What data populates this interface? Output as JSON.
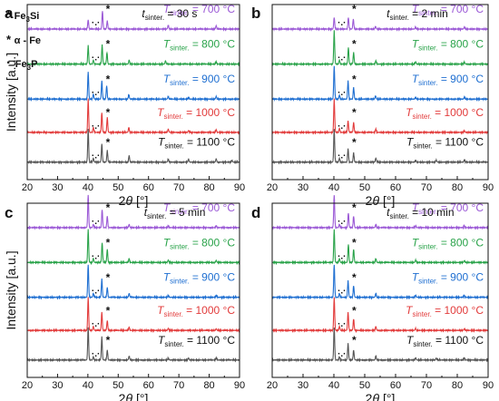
{
  "chart_data": [
    {
      "panel": "a",
      "type": "line",
      "time_label": "30 s",
      "xlabel": "2θ [°]",
      "ylabel": "Intensity [a.u.]",
      "xlim": [
        20,
        90
      ],
      "xticks": [
        "20",
        "30",
        "40",
        "50",
        "60",
        "70",
        "80",
        "90"
      ],
      "legend": [
        {
          "symbol": "*",
          "label": "Fe3Si",
          "sub": "3",
          "base": "Fe",
          "tail": "Si"
        },
        {
          "symbol": "*",
          "label": "α - Fe"
        },
        {
          "symbol": "·",
          "label": "Fe3P",
          "sub": "3",
          "base": "Fe",
          "tail": "P"
        }
      ],
      "series": [
        {
          "name": "700 °C",
          "color": "#9b59d6",
          "peaks": [
            [
              40.1,
              0.28
            ],
            [
              44.8,
              0.55
            ],
            [
              46.4,
              0.25
            ],
            [
              66.5,
              0.12
            ],
            [
              82.3,
              0.1
            ]
          ]
        },
        {
          "name": "800 °C",
          "color": "#2aa34a",
          "peaks": [
            [
              40.1,
              0.55
            ],
            [
              41.8,
              0.12
            ],
            [
              44.7,
              0.58
            ],
            [
              46.3,
              0.35
            ],
            [
              53.6,
              0.12
            ],
            [
              65.6,
              0.1
            ],
            [
              82.3,
              0.07
            ]
          ]
        },
        {
          "name": "900 °C",
          "color": "#1f6fd1",
          "peaks": [
            [
              40.1,
              0.82
            ],
            [
              41.8,
              0.15
            ],
            [
              44.6,
              0.55
            ],
            [
              46.2,
              0.4
            ],
            [
              53.5,
              0.14
            ],
            [
              66.5,
              0.08
            ],
            [
              73.2,
              0.05
            ],
            [
              82.3,
              0.08
            ]
          ]
        },
        {
          "name": "1000 °C",
          "color": "#e23b3b",
          "peaks": [
            [
              40.1,
              1.0
            ],
            [
              41.8,
              0.15
            ],
            [
              44.6,
              0.6
            ],
            [
              46.4,
              0.45
            ],
            [
              53.5,
              0.15
            ],
            [
              66.5,
              0.1
            ],
            [
              73.2,
              0.06
            ],
            [
              82.3,
              0.08
            ]
          ]
        },
        {
          "name": "1100 °C",
          "color": "#555555",
          "peaks": [
            [
              40.1,
              1.0
            ],
            [
              41.8,
              0.12
            ],
            [
              44.6,
              0.55
            ],
            [
              46.4,
              0.35
            ],
            [
              53.6,
              0.2
            ],
            [
              66.5,
              0.09
            ],
            [
              73.2,
              0.09
            ],
            [
              82.3,
              0.1
            ],
            [
              87.5,
              0.05
            ]
          ]
        }
      ]
    },
    {
      "panel": "b",
      "type": "line",
      "time_label": "2 min",
      "xlabel": "2θ [°]",
      "ylabel": "",
      "xlim": [
        20,
        90
      ],
      "xticks": [
        "20",
        "30",
        "40",
        "50",
        "60",
        "70",
        "80",
        "90"
      ],
      "series": [
        {
          "name": "700 °C",
          "color": "#9b59d6",
          "peaks": [
            [
              40.1,
              0.35
            ],
            [
              44.7,
              0.35
            ],
            [
              46.3,
              0.3
            ],
            [
              53.5,
              0.08
            ],
            [
              66.5,
              0.06
            ],
            [
              82.3,
              0.06
            ]
          ]
        },
        {
          "name": "800 °C",
          "color": "#2aa34a",
          "peaks": [
            [
              40.1,
              1.0
            ],
            [
              41.8,
              0.12
            ],
            [
              44.7,
              0.5
            ],
            [
              46.4,
              0.35
            ],
            [
              53.6,
              0.1
            ],
            [
              66.5,
              0.07
            ],
            [
              82.3,
              0.06
            ]
          ]
        },
        {
          "name": "900 °C",
          "color": "#1f6fd1",
          "peaks": [
            [
              40.1,
              1.0
            ],
            [
              41.8,
              0.12
            ],
            [
              44.6,
              0.55
            ],
            [
              46.4,
              0.35
            ],
            [
              53.5,
              0.1
            ],
            [
              66.5,
              0.06
            ],
            [
              82.3,
              0.06
            ]
          ]
        },
        {
          "name": "1000 °C",
          "color": "#e23b3b",
          "peaks": [
            [
              40.1,
              1.0
            ],
            [
              41.8,
              0.12
            ],
            [
              44.6,
              0.35
            ],
            [
              46.4,
              0.3
            ],
            [
              53.6,
              0.1
            ],
            [
              82.3,
              0.05
            ]
          ]
        },
        {
          "name": "1100 °C",
          "color": "#555555",
          "peaks": [
            [
              40.1,
              1.0
            ],
            [
              41.8,
              0.12
            ],
            [
              44.6,
              0.4
            ],
            [
              46.4,
              0.28
            ],
            [
              53.6,
              0.12
            ],
            [
              66.5,
              0.06
            ],
            [
              73.2,
              0.06
            ],
            [
              82.3,
              0.07
            ]
          ]
        }
      ]
    },
    {
      "panel": "c",
      "type": "line",
      "time_label": "5 min",
      "xlabel": "2θ [°]",
      "ylabel": "Intensity [a.u.]",
      "xlim": [
        20,
        90
      ],
      "xticks": [
        "20",
        "30",
        "40",
        "50",
        "60",
        "70",
        "80",
        "90"
      ],
      "series": [
        {
          "name": "700 °C",
          "color": "#9b59d6",
          "peaks": [
            [
              40.1,
              1.0
            ],
            [
              41.8,
              0.1
            ],
            [
              44.7,
              0.55
            ],
            [
              46.4,
              0.35
            ],
            [
              53.6,
              0.1
            ],
            [
              66.5,
              0.06
            ],
            [
              82.3,
              0.06
            ]
          ]
        },
        {
          "name": "800 °C",
          "color": "#2aa34a",
          "peaks": [
            [
              40.1,
              1.0
            ],
            [
              41.8,
              0.12
            ],
            [
              44.7,
              0.6
            ],
            [
              46.4,
              0.4
            ],
            [
              53.6,
              0.12
            ],
            [
              66.5,
              0.07
            ],
            [
              82.3,
              0.06
            ]
          ]
        },
        {
          "name": "900 °C",
          "color": "#1f6fd1",
          "peaks": [
            [
              40.1,
              1.0
            ],
            [
              41.8,
              0.12
            ],
            [
              44.6,
              0.55
            ],
            [
              46.4,
              0.3
            ],
            [
              53.6,
              0.12
            ],
            [
              66.5,
              0.06
            ],
            [
              82.3,
              0.06
            ]
          ]
        },
        {
          "name": "1000 °C",
          "color": "#e23b3b",
          "peaks": [
            [
              40.1,
              1.0
            ],
            [
              41.8,
              0.12
            ],
            [
              44.6,
              0.55
            ],
            [
              46.4,
              0.3
            ],
            [
              53.6,
              0.1
            ],
            [
              66.5,
              0.06
            ],
            [
              82.3,
              0.05
            ]
          ]
        },
        {
          "name": "1100 °C",
          "color": "#555555",
          "peaks": [
            [
              40.1,
              1.0
            ],
            [
              41.8,
              0.1
            ],
            [
              44.6,
              0.7
            ],
            [
              46.4,
              0.3
            ],
            [
              53.6,
              0.12
            ],
            [
              66.5,
              0.06
            ],
            [
              73.2,
              0.06
            ],
            [
              82.3,
              0.07
            ]
          ]
        }
      ]
    },
    {
      "panel": "d",
      "type": "line",
      "time_label": "10 min",
      "xlabel": "2θ [°]",
      "ylabel": "",
      "xlim": [
        20,
        90
      ],
      "xticks": [
        "20",
        "30",
        "40",
        "50",
        "60",
        "70",
        "80",
        "90"
      ],
      "series": [
        {
          "name": "700 °C",
          "color": "#9b59d6",
          "peaks": [
            [
              40.1,
              1.0
            ],
            [
              41.8,
              0.1
            ],
            [
              44.7,
              0.45
            ],
            [
              46.4,
              0.35
            ],
            [
              53.6,
              0.1
            ],
            [
              66.5,
              0.06
            ],
            [
              82.3,
              0.06
            ]
          ]
        },
        {
          "name": "800 °C",
          "color": "#2aa34a",
          "peaks": [
            [
              40.1,
              1.0
            ],
            [
              41.8,
              0.12
            ],
            [
              44.7,
              0.55
            ],
            [
              46.4,
              0.4
            ],
            [
              53.6,
              0.12
            ],
            [
              66.5,
              0.07
            ],
            [
              82.3,
              0.06
            ]
          ]
        },
        {
          "name": "900 °C",
          "color": "#1f6fd1",
          "peaks": [
            [
              40.1,
              1.0
            ],
            [
              41.8,
              0.12
            ],
            [
              44.6,
              0.5
            ],
            [
              46.4,
              0.35
            ],
            [
              53.6,
              0.12
            ],
            [
              66.5,
              0.06
            ],
            [
              82.3,
              0.06
            ]
          ]
        },
        {
          "name": "1000 °C",
          "color": "#e23b3b",
          "peaks": [
            [
              40.1,
              1.0
            ],
            [
              41.8,
              0.12
            ],
            [
              44.6,
              0.55
            ],
            [
              46.4,
              0.35
            ],
            [
              53.6,
              0.12
            ],
            [
              66.5,
              0.06
            ],
            [
              82.3,
              0.05
            ]
          ]
        },
        {
          "name": "1100 °C",
          "color": "#555555",
          "peaks": [
            [
              40.1,
              1.0
            ],
            [
              41.8,
              0.1
            ],
            [
              44.6,
              0.5
            ],
            [
              46.4,
              0.3
            ],
            [
              53.6,
              0.12
            ],
            [
              66.5,
              0.06
            ],
            [
              73.2,
              0.06
            ],
            [
              82.3,
              0.07
            ]
          ]
        }
      ]
    }
  ],
  "labels": {
    "t_symbol": "t",
    "t_subscript": "sinter.",
    "t_sep": " = ",
    "T_symbol": "T",
    "T_subscript": "sinter.",
    "T_sep": " = "
  }
}
